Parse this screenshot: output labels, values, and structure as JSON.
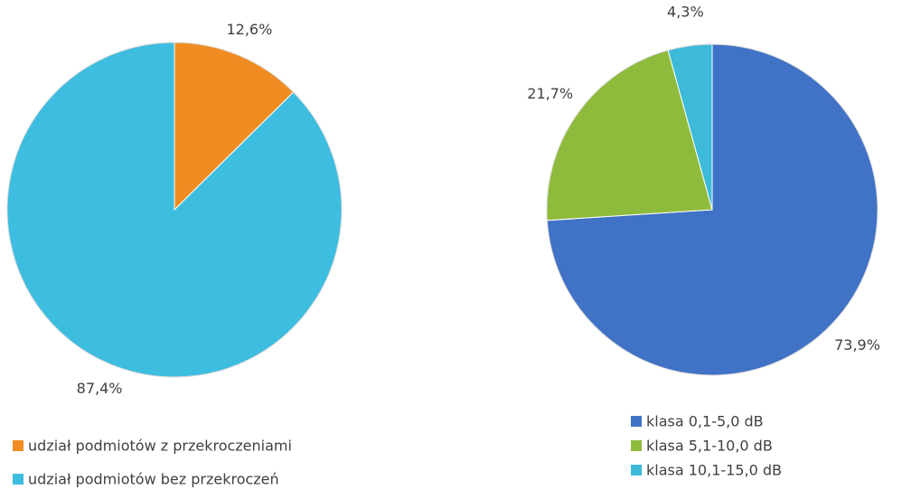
{
  "chart_data": [
    {
      "type": "pie",
      "categories": [
        "udział podmiotów z przekroczeniami",
        "udział podmiotów bez przekroczeń"
      ],
      "values": [
        12.6,
        87.4
      ],
      "value_labels": [
        "12,6%",
        "87,4%"
      ],
      "colors": [
        "#f08c22",
        "#3dbde0"
      ]
    },
    {
      "type": "pie",
      "categories": [
        "klasa 0,1-5,0 dB",
        "klasa 5,1-10,0 dB",
        "klasa 10,1-15,0 dB"
      ],
      "values": [
        73.9,
        21.7,
        4.3
      ],
      "value_labels": [
        "73,9%",
        "21,7%",
        "4,3%"
      ],
      "colors": [
        "#4072c6",
        "#8fbb3c",
        "#3cbad8"
      ]
    }
  ]
}
